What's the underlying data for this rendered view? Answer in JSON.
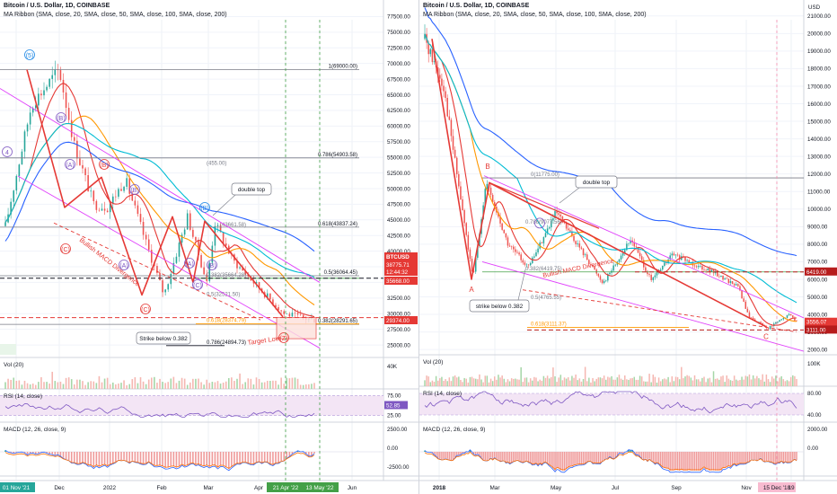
{
  "left": {
    "header": {
      "symbol": "Bitcoin / U.S. Dollar, 1D, COINBASE",
      "ribbon": "MA Ribbon (SMA, close, 20, SMA, close, 50, SMA, close, 100, SMA, close, 200)"
    },
    "price_ticks": [
      "77500.00",
      "75000.00",
      "72500.00",
      "70000.00",
      "67500.00",
      "65000.00",
      "62500.00",
      "60000.00",
      "57500.00",
      "55000.00",
      "52500.00",
      "50000.00",
      "47500.00",
      "45000.00",
      "42500.00",
      "40000.00",
      "37500.00",
      "35000.00",
      "32500.00",
      "30000.00",
      "27500.00",
      "25000.00"
    ],
    "price_tags": [
      {
        "label": "BTCUSD",
        "color": "#e53935"
      },
      {
        "label": "38775.71",
        "color": "#e53935"
      },
      {
        "label": "12:44:32",
        "color": "#e53935"
      },
      {
        "label": "35668.00",
        "color": "#e53935"
      },
      {
        "label": "29374.00",
        "color": "#e53935"
      }
    ],
    "fib_labels": [
      "1(69000.00)",
      "0.786(54903.58)",
      "0.618(43837.24)",
      "0.5(36064.45)",
      "0.382(28291.65)",
      "0.786(24894.73)",
      "0.5(32521.50)",
      "0.618(28374.79)",
      "0.382(35664.28)",
      "(43661.58)",
      "(455.00)"
    ],
    "wave_labels": [
      "(5)",
      "4",
      "(B)",
      "(A)",
      "(B)",
      "(C)",
      "(A)",
      "(B)",
      "(C)",
      "(B)",
      "(A)",
      "(B)",
      "(C)",
      "(Z)"
    ],
    "annotations": [
      "double top",
      "Bullish MACD Divergence",
      "Strike below 0.382",
      "Target Low"
    ],
    "vol": {
      "title": "Vol (20)",
      "tick": "40K"
    },
    "rsi": {
      "title": "RSI (14, close)",
      "tick1": "75.00",
      "tick2": "25.00",
      "value": "52.85"
    },
    "macd": {
      "title": "MACD (12, 26, close, 9)",
      "ticks": [
        "2500.00",
        "0.00",
        "-2500.00"
      ]
    },
    "x_labels": [
      "01 Nov '21",
      "Dec",
      "2022",
      "Feb",
      "Mar",
      "Apr",
      "21 Apr '22",
      "13 May '22",
      "Jun"
    ],
    "chart_data": {
      "type": "line",
      "title": "Bitcoin / U.S. Dollar, 1D, COINBASE",
      "ylim": [
        23000,
        79000
      ],
      "series": [
        {
          "name": "Bitcoin / U.S. Dollar",
          "points": [
            {
              "x": "2021-10-01",
              "y": 44000
            },
            {
              "x": "2021-10-20",
              "y": 63500
            },
            {
              "x": "2021-11-09",
              "y": 69000
            },
            {
              "x": "2021-11-20",
              "y": 57000
            },
            {
              "x": "2021-12-04",
              "y": 47500
            },
            {
              "x": "2021-12-14",
              "y": 47000
            },
            {
              "x": "2021-12-27",
              "y": 51500
            },
            {
              "x": "2022-01-10",
              "y": 42000
            },
            {
              "x": "2022-01-24",
              "y": 33000
            },
            {
              "x": "2022-02-10",
              "y": 45500
            },
            {
              "x": "2022-02-24",
              "y": 35000
            },
            {
              "x": "2022-03-02",
              "y": 44500
            },
            {
              "x": "2022-03-15",
              "y": 38500
            },
            {
              "x": "2022-04-21",
              "y": 30000
            },
            {
              "x": "2022-05-13",
              "y": 29000
            }
          ]
        }
      ]
    }
  },
  "right": {
    "header": {
      "symbol": "Bitcoin / U.S. Dollar, 1D, COINBASE",
      "ribbon": "MA Ribbon (SMA, close, 20, SMA, close, 50, SMA, close, 100, SMA, close, 200)"
    },
    "currency": "USD",
    "price_ticks": [
      "21000.00",
      "20000.00",
      "19000.00",
      "18000.00",
      "17000.00",
      "16000.00",
      "15000.00",
      "14000.00",
      "13000.00",
      "12000.00",
      "11000.00",
      "10000.00",
      "9000.00",
      "8000.00",
      "7000.00",
      "6000.00",
      "5000.00",
      "4000.00",
      "3000.00",
      "2000.00"
    ],
    "price_tags": [
      {
        "label": "6419.00",
        "color": "#b71c1c"
      },
      {
        "label": "3556.07",
        "color": "#e53935"
      },
      {
        "label": "3111.00",
        "color": "#b71c1c"
      }
    ],
    "fib_labels": [
      "0(11775.00)",
      "0.382(6419.75)",
      "0.5(4765.55)",
      "0.618(3111.37)",
      "0.786(9077.56)"
    ],
    "wave_labels": [
      "B",
      "A",
      "C"
    ],
    "annotations": [
      "double top",
      "Bullish MACD Divergence",
      "strike below 0.382"
    ],
    "vol": {
      "title": "Vol (20)",
      "tick": "100K"
    },
    "rsi": {
      "title": "RSI (14, close)",
      "tick1": "80.00",
      "tick2": "40.00"
    },
    "macd": {
      "title": "MACD (12, 26, close, 9)",
      "ticks": [
        "2000.00",
        "0.00"
      ]
    },
    "x_labels": [
      "2018",
      "Mar",
      "May",
      "Jul",
      "Sep",
      "Nov",
      "15 Dec '18",
      "19"
    ],
    "chart_data": {
      "type": "line",
      "title": "Bitcoin / U.S. Dollar, 1D, COINBASE",
      "ylim": [
        1700,
        21500
      ],
      "series": [
        {
          "name": "Bitcoin / U.S. Dollar",
          "points": [
            {
              "x": "2017-12-17",
              "y": 19700
            },
            {
              "x": "2018-01-06",
              "y": 17000
            },
            {
              "x": "2018-01-20",
              "y": 12000
            },
            {
              "x": "2018-02-06",
              "y": 6000
            },
            {
              "x": "2018-02-20",
              "y": 11500
            },
            {
              "x": "2018-03-15",
              "y": 8000
            },
            {
              "x": "2018-04-06",
              "y": 6700
            },
            {
              "x": "2018-05-05",
              "y": 9800
            },
            {
              "x": "2018-06-24",
              "y": 5800
            },
            {
              "x": "2018-07-24",
              "y": 8300
            },
            {
              "x": "2018-08-14",
              "y": 5900
            },
            {
              "x": "2018-09-05",
              "y": 7400
            },
            {
              "x": "2018-10-15",
              "y": 6500
            },
            {
              "x": "2018-11-14",
              "y": 5600
            },
            {
              "x": "2018-11-25",
              "y": 3900
            },
            {
              "x": "2018-12-15",
              "y": 3200
            },
            {
              "x": "2019-01-08",
              "y": 4000
            },
            {
              "x": "2019-01-15",
              "y": 3600
            }
          ]
        }
      ]
    }
  }
}
